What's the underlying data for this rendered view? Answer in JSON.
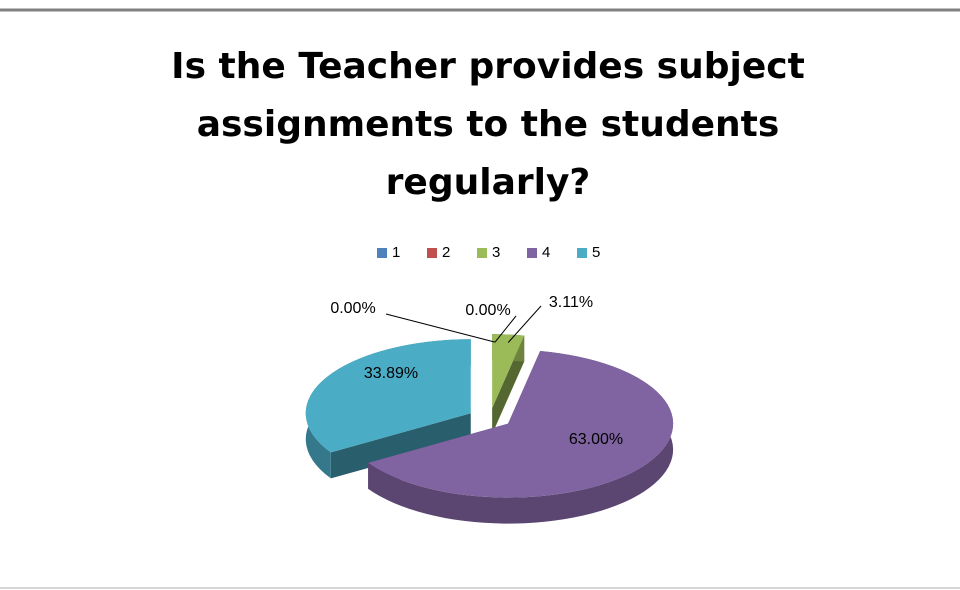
{
  "chart_data": {
    "type": "pie3d",
    "title": [
      "Is the Teacher provides subject",
      "assignments to the students",
      "regularly?"
    ],
    "categories": [
      "1",
      "2",
      "3",
      "4",
      "5"
    ],
    "values": [
      0,
      0,
      3.11,
      63,
      33.89
    ],
    "value_labels": [
      "0.00%",
      "0.00%",
      "3.11%",
      "63.00%",
      "33.89%"
    ],
    "colors": [
      "#4f81bd",
      "#c0504d",
      "#9bbb59",
      "#8064a2",
      "#4bacc6"
    ],
    "legend": "top"
  }
}
